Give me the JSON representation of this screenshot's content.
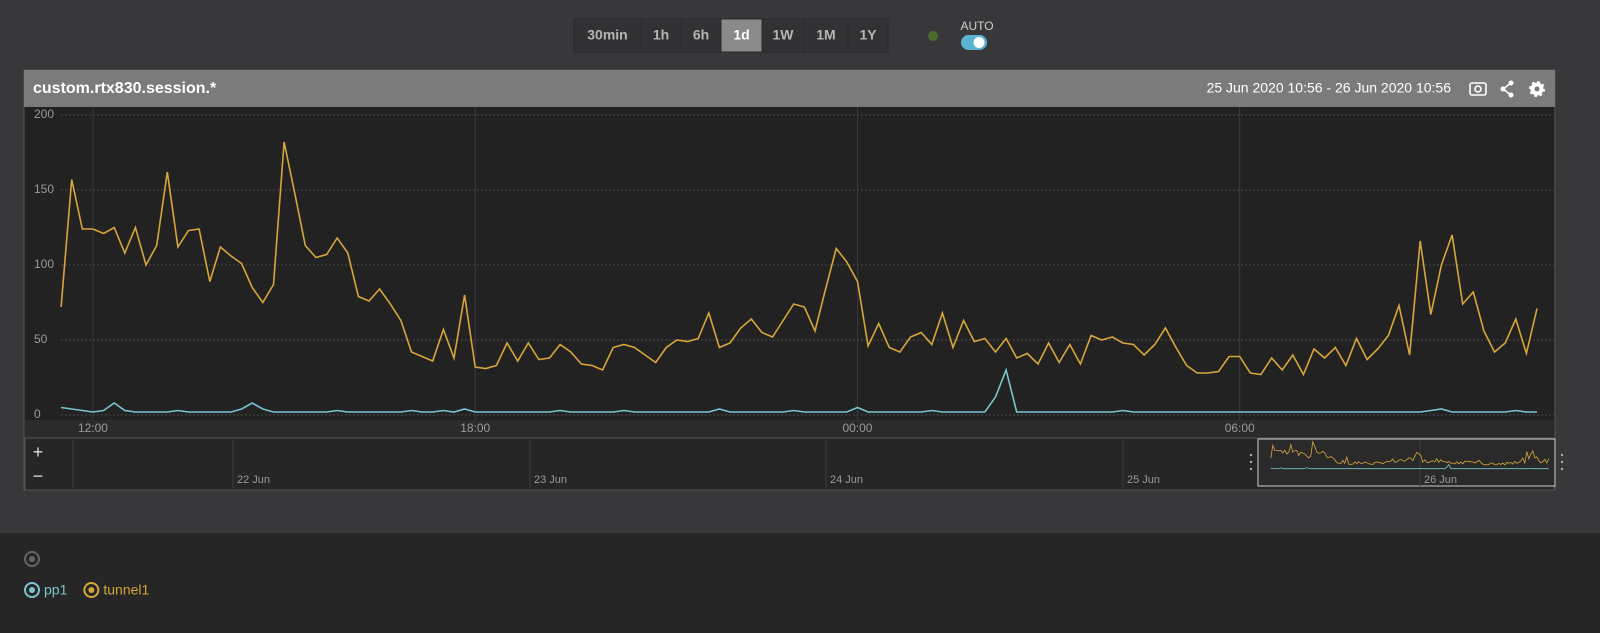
{
  "toolbar": {
    "ranges": [
      "30min",
      "1h",
      "6h",
      "1d",
      "1W",
      "1M",
      "1Y"
    ],
    "active_range": 3,
    "auto_label": "AUTO",
    "auto_on": true
  },
  "panel": {
    "title": "custom.rtx830.session.*",
    "range": "25 Jun 2020 10:56 - 26 Jun 2020 10:56"
  },
  "navigator": {
    "zoom_in": "+",
    "zoom_out": "−",
    "dates": [
      "22 Jun",
      "23 Jun",
      "24 Jun",
      "25 Jun",
      "26 Jun"
    ]
  },
  "chart_data": {
    "type": "line",
    "x": [
      690,
      700,
      710,
      720,
      730,
      740,
      750,
      760,
      770,
      780,
      790,
      800,
      810,
      820,
      830,
      840,
      850,
      860,
      870,
      880,
      890,
      900,
      910,
      920,
      930,
      940,
      950,
      960,
      970,
      980,
      990,
      1000,
      1010,
      1020,
      1030,
      1040,
      1050,
      1060,
      1070,
      1080,
      1090,
      1100,
      1110,
      1120,
      1130,
      1140,
      1150,
      1160,
      1170,
      1180,
      1190,
      1200,
      1210,
      1220,
      1230,
      1240,
      1250,
      1260,
      1270,
      1280,
      1290,
      1300,
      1310,
      1320,
      1330,
      1340,
      1350,
      1360,
      1370,
      1380,
      1390,
      1400,
      1410,
      1420,
      1430,
      1440,
      1450,
      1460,
      1470,
      1480,
      1490,
      1500,
      1510,
      1520,
      1530,
      1540,
      1550,
      1560,
      1570,
      1580,
      1590,
      1600,
      1610,
      1620,
      1630,
      1640,
      1650,
      1660,
      1670,
      1680,
      1690,
      1700,
      1710,
      1720,
      1730,
      1740,
      1750,
      1760,
      1770,
      1780,
      1790,
      1800,
      1810,
      1820,
      1830,
      1840,
      1850,
      1860,
      1870,
      1880,
      1890,
      1900,
      1910,
      1920,
      1930,
      1940,
      1950,
      1960,
      1970,
      1980,
      1990,
      2000,
      2010,
      2020,
      2030,
      2040,
      2050,
      2060,
      2070,
      2080
    ],
    "xlim": [
      656,
      2096
    ],
    "xticks": [
      {
        "value": 720,
        "label": "12:00"
      },
      {
        "value": 1080,
        "label": "18:00"
      },
      {
        "value": 1440,
        "label": "00:00"
      },
      {
        "value": 1800,
        "label": "06:00"
      }
    ],
    "ylim": [
      0,
      200
    ],
    "yticks": [
      0,
      50,
      100,
      150,
      200
    ],
    "grid": true,
    "series": [
      {
        "name": "pp1",
        "color": "#7cc3cf",
        "values": [
          5,
          4,
          3,
          2,
          3,
          8,
          3,
          2,
          2,
          2,
          2,
          3,
          2,
          2,
          2,
          2,
          2,
          4,
          8,
          4,
          2,
          2,
          2,
          2,
          2,
          2,
          3,
          2,
          2,
          2,
          2,
          2,
          2,
          3,
          2,
          2,
          3,
          2,
          4,
          2,
          2,
          2,
          2,
          2,
          2,
          2,
          2,
          3,
          2,
          2,
          2,
          2,
          2,
          3,
          2,
          2,
          2,
          2,
          2,
          2,
          2,
          2,
          4,
          2,
          2,
          2,
          2,
          2,
          2,
          3,
          2,
          2,
          2,
          2,
          2,
          5,
          2,
          2,
          2,
          2,
          2,
          2,
          3,
          2,
          2,
          2,
          2,
          2,
          12,
          30,
          2,
          2,
          2,
          2,
          2,
          2,
          2,
          2,
          2,
          2,
          3,
          2,
          2,
          2,
          2,
          2,
          2,
          2,
          2,
          2,
          2,
          2,
          2,
          2,
          2,
          2,
          2,
          2,
          2,
          2,
          2,
          2,
          2,
          2,
          2,
          2,
          2,
          2,
          2,
          3,
          4,
          2,
          2,
          2,
          2,
          2,
          2,
          3,
          2,
          2
        ]
      },
      {
        "name": "tunnel1",
        "color": "#d6a63c",
        "values": [
          72,
          157,
          124,
          124,
          121,
          125,
          108,
          125,
          100,
          113,
          162,
          112,
          123,
          124,
          89,
          112,
          106,
          101,
          85,
          75,
          87,
          182,
          148,
          113,
          105,
          107,
          118,
          108,
          79,
          76,
          84,
          74,
          63,
          42,
          39,
          36,
          57,
          38,
          80,
          32,
          31,
          33,
          48,
          36,
          48,
          37,
          38,
          47,
          42,
          34,
          33,
          30,
          45,
          47,
          45,
          40,
          35,
          45,
          50,
          49,
          51,
          68,
          45,
          48,
          58,
          64,
          55,
          52,
          63,
          74,
          72,
          56,
          84,
          111,
          102,
          89,
          46,
          61,
          45,
          42,
          52,
          55,
          47,
          68,
          45,
          63,
          49,
          51,
          42,
          51,
          38,
          41,
          34,
          48,
          35,
          47,
          34,
          53,
          50,
          52,
          48,
          47,
          40,
          47,
          58,
          45,
          33,
          28,
          28,
          29,
          39,
          39,
          28,
          27,
          38,
          30,
          40,
          27,
          44,
          38,
          45,
          33,
          51,
          37,
          44,
          53,
          73,
          40,
          116,
          67,
          100,
          120,
          74,
          82,
          56,
          42,
          48,
          64,
          41,
          71
        ]
      }
    ]
  }
}
